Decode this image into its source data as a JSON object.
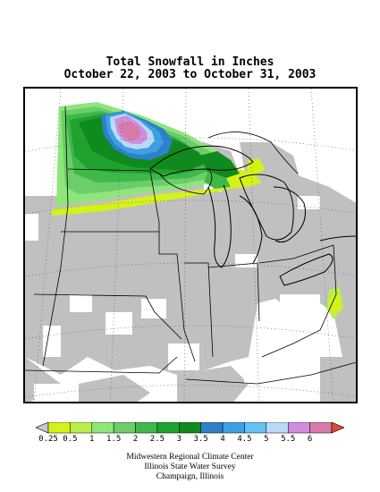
{
  "title": {
    "line1": "Total Snowfall in Inches",
    "line2": "October 22, 2003 to October 31, 2003"
  },
  "legend": {
    "labels": [
      "0.25",
      "0.5",
      "1",
      "1.5",
      "2",
      "2.5",
      "3",
      "3.5",
      "4",
      "4.5",
      "5",
      "5.5",
      "6"
    ],
    "colors": [
      "#d4f21a",
      "#b8f04a",
      "#8ee67a",
      "#6ccd6a",
      "#3fb84a",
      "#1ea32e",
      "#0f8a1e",
      "#2f7fcb",
      "#3da0e6",
      "#66c0f2",
      "#b9dbf5",
      "#d08de0",
      "#d67aa8",
      "#d84d36"
    ],
    "low_end_color": "#c8c8c8"
  },
  "credits": {
    "line1": "Midwestern Regional Climate Center",
    "line2": "Illinois State Water Survey",
    "line3": "Champaign, Illinois"
  },
  "map": {
    "no_data_color": "#c0c0c0",
    "background_color": "#ffffff"
  }
}
